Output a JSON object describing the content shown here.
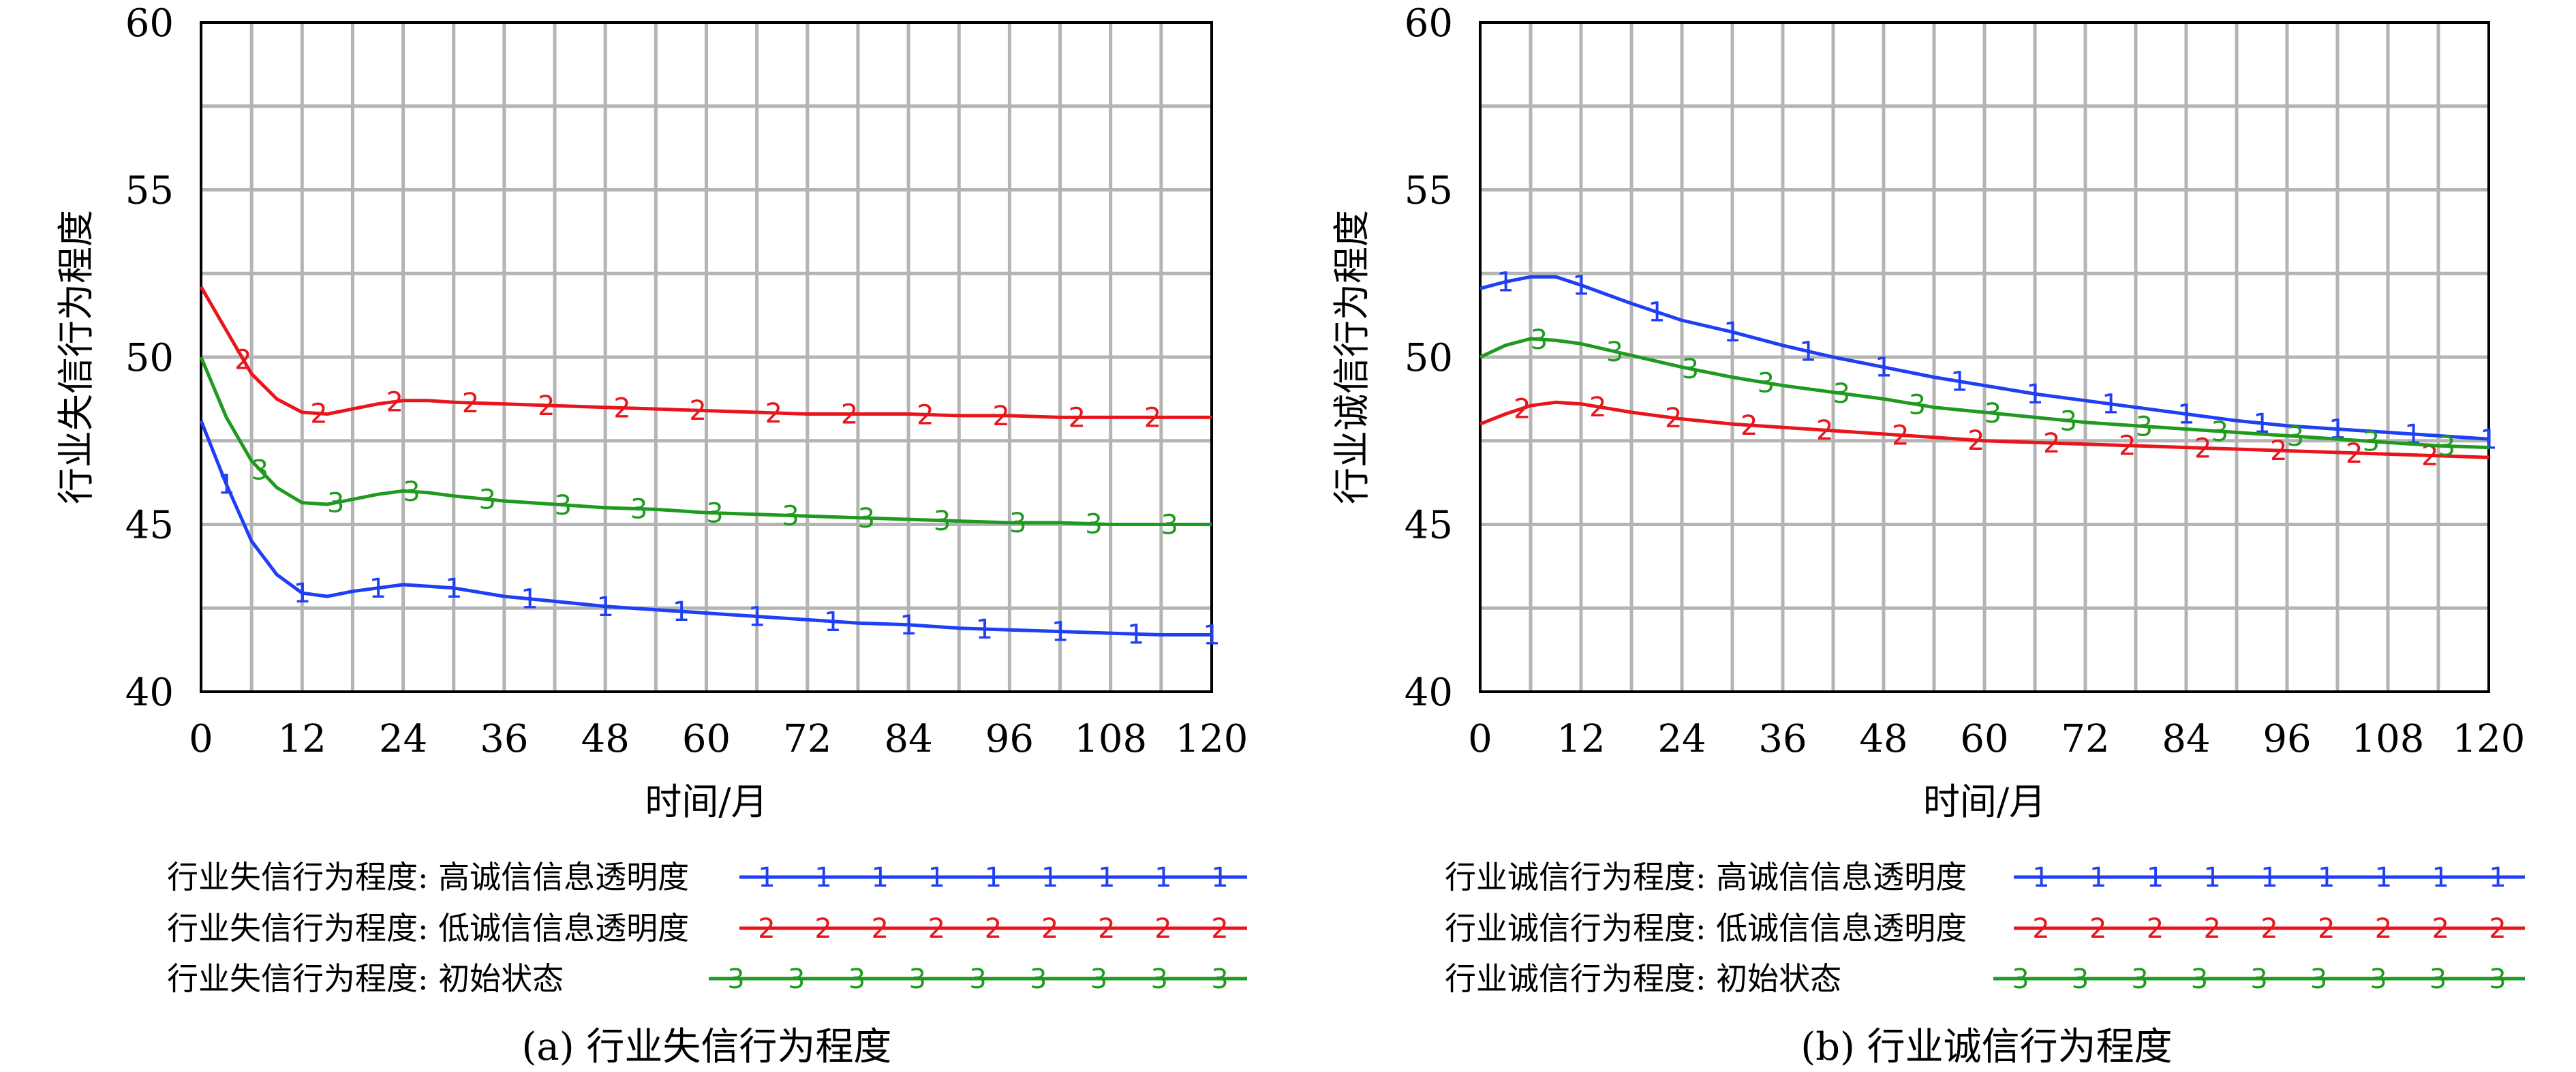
{
  "chart_data": [
    {
      "type": "line",
      "caption": "(a) 行业失信行为程度",
      "xlabel": "时间/月",
      "ylabel": "行业失信行为程度",
      "xlim": [
        0,
        120
      ],
      "ylim": [
        40,
        60
      ],
      "xticks": [
        0,
        12,
        24,
        36,
        48,
        60,
        72,
        84,
        96,
        108,
        120
      ],
      "yticks": [
        40,
        45,
        50,
        55,
        60
      ],
      "grid": true,
      "legend_position": "bottom",
      "series": [
        {
          "name": "行业失信行为程度: 高诚信信息透明度",
          "marker": "1",
          "color": "#1f3ff5",
          "x": [
            0,
            3,
            6,
            9,
            12,
            15,
            18,
            21,
            24,
            27,
            30,
            36,
            42,
            48,
            54,
            60,
            66,
            72,
            78,
            84,
            90,
            96,
            102,
            108,
            114,
            120
          ],
          "y": [
            48.1,
            46.2,
            44.5,
            43.5,
            42.95,
            42.85,
            43.0,
            43.1,
            43.2,
            43.15,
            43.1,
            42.85,
            42.7,
            42.55,
            42.45,
            42.35,
            42.25,
            42.15,
            42.05,
            42.0,
            41.9,
            41.85,
            41.8,
            41.75,
            41.7,
            41.7
          ]
        },
        {
          "name": "行业失信行为程度: 低诚信信息透明度",
          "marker": "2",
          "color": "#e8161c",
          "x": [
            0,
            3,
            6,
            9,
            12,
            15,
            18,
            21,
            24,
            27,
            30,
            36,
            42,
            48,
            54,
            60,
            66,
            72,
            78,
            84,
            90,
            96,
            102,
            108,
            114,
            120
          ],
          "y": [
            52.1,
            50.8,
            49.5,
            48.75,
            48.35,
            48.3,
            48.45,
            48.6,
            48.7,
            48.7,
            48.65,
            48.6,
            48.55,
            48.5,
            48.45,
            48.4,
            48.35,
            48.3,
            48.3,
            48.3,
            48.25,
            48.25,
            48.2,
            48.2,
            48.2,
            48.2
          ]
        },
        {
          "name": "行业失信行为程度: 初始状态",
          "marker": "3",
          "color": "#1f9a1f",
          "x": [
            0,
            3,
            6,
            9,
            12,
            15,
            18,
            21,
            24,
            27,
            30,
            36,
            42,
            48,
            54,
            60,
            66,
            72,
            78,
            84,
            90,
            96,
            102,
            108,
            114,
            120
          ],
          "y": [
            50.0,
            48.2,
            46.9,
            46.1,
            45.65,
            45.6,
            45.75,
            45.9,
            46.0,
            45.95,
            45.85,
            45.7,
            45.6,
            45.5,
            45.45,
            45.35,
            45.3,
            45.25,
            45.2,
            45.15,
            45.1,
            45.05,
            45.05,
            45.0,
            45.0,
            45.0
          ]
        }
      ]
    },
    {
      "type": "line",
      "caption": "(b) 行业诚信行为程度",
      "xlabel": "时间/月",
      "ylabel": "行业诚信行为程度",
      "xlim": [
        0,
        120
      ],
      "ylim": [
        40,
        60
      ],
      "xticks": [
        0,
        12,
        24,
        36,
        48,
        60,
        72,
        84,
        96,
        108,
        120
      ],
      "yticks": [
        40,
        45,
        50,
        55,
        60
      ],
      "grid": true,
      "legend_position": "bottom",
      "series": [
        {
          "name": "行业诚信行为程度: 高诚信信息透明度",
          "marker": "1",
          "color": "#1f3ff5",
          "x": [
            0,
            3,
            6,
            9,
            12,
            18,
            24,
            30,
            36,
            42,
            48,
            54,
            60,
            66,
            72,
            78,
            84,
            90,
            96,
            102,
            108,
            114,
            120
          ],
          "y": [
            52.05,
            52.25,
            52.4,
            52.4,
            52.15,
            51.6,
            51.1,
            50.75,
            50.35,
            50.0,
            49.7,
            49.4,
            49.15,
            48.9,
            48.7,
            48.5,
            48.3,
            48.1,
            47.95,
            47.85,
            47.75,
            47.65,
            47.55
          ]
        },
        {
          "name": "行业诚信行为程度: 低诚信信息透明度",
          "marker": "2",
          "color": "#e8161c",
          "x": [
            0,
            3,
            6,
            9,
            12,
            18,
            24,
            30,
            36,
            42,
            48,
            54,
            60,
            66,
            72,
            78,
            84,
            90,
            96,
            102,
            108,
            114,
            120
          ],
          "y": [
            48.0,
            48.3,
            48.55,
            48.65,
            48.6,
            48.35,
            48.15,
            48.0,
            47.9,
            47.8,
            47.7,
            47.6,
            47.5,
            47.45,
            47.4,
            47.35,
            47.3,
            47.25,
            47.2,
            47.15,
            47.1,
            47.05,
            47.0
          ]
        },
        {
          "name": "行业诚信行为程度: 初始状态",
          "marker": "3",
          "color": "#1f9a1f",
          "x": [
            0,
            3,
            6,
            9,
            12,
            18,
            24,
            30,
            36,
            42,
            48,
            54,
            60,
            66,
            72,
            78,
            84,
            90,
            96,
            102,
            108,
            114,
            120
          ],
          "y": [
            50.0,
            50.35,
            50.55,
            50.5,
            50.4,
            50.05,
            49.7,
            49.4,
            49.15,
            48.95,
            48.75,
            48.5,
            48.35,
            48.2,
            48.05,
            47.95,
            47.85,
            47.75,
            47.65,
            47.55,
            47.45,
            47.35,
            47.3
          ]
        }
      ]
    }
  ]
}
